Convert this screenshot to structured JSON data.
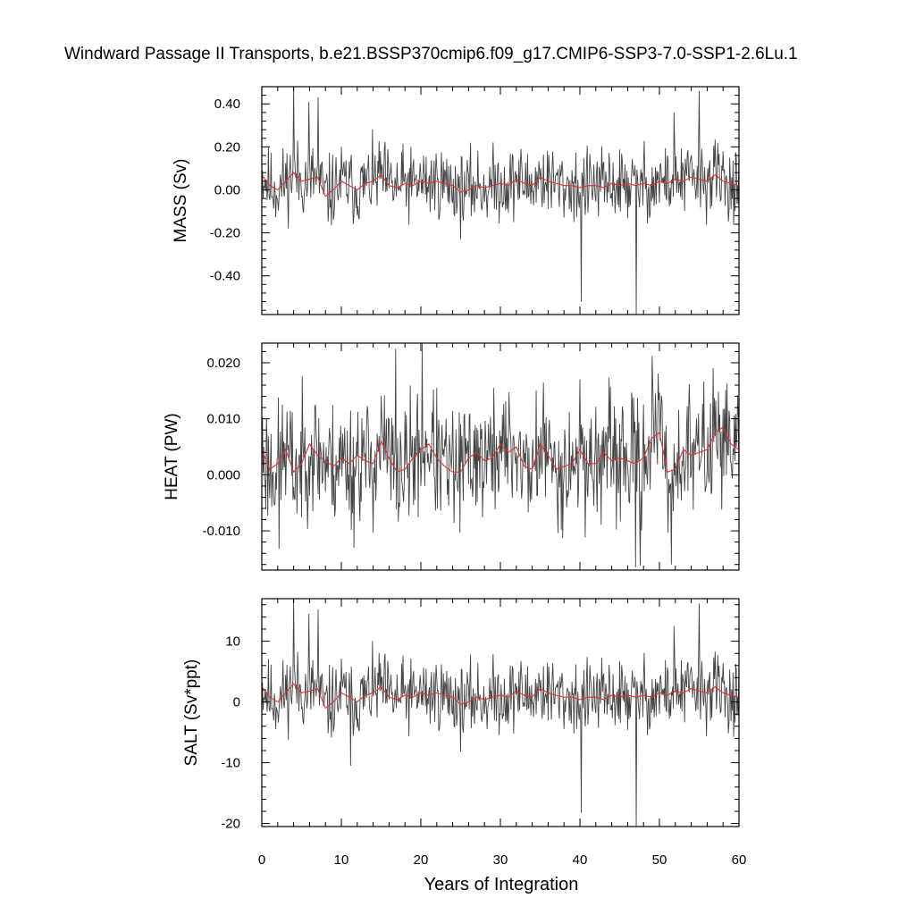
{
  "title": "Windward Passage II Transports, b.e21.BSSP370cmip6.f09_g17.CMIP6-SSP3-7.0-SSP1-2.6Lu.1",
  "xlabel": "Years of Integration",
  "x_ticks": [
    "0",
    "10",
    "20",
    "30",
    "40",
    "50",
    "60"
  ],
  "colors": {
    "raw_series": "#444444",
    "smoothed_series": "#e03030",
    "frame": "#000000"
  },
  "chart_data": [
    {
      "type": "line",
      "ylabel": "MASS (Sv)",
      "xlim": [
        0,
        60
      ],
      "ylim": [
        -0.58,
        0.48
      ],
      "y_ticks": [
        "0.40",
        "0.20",
        "0.00",
        "-0.20",
        "-0.40"
      ],
      "y_tick_values": [
        0.4,
        0.2,
        0.0,
        -0.2,
        -0.4
      ],
      "series": [
        {
          "style": "raw",
          "seed": 11,
          "scale": 0.085,
          "spikes": [
            [
              4.0,
              0.48
            ],
            [
              5.9,
              0.41
            ],
            [
              7.1,
              0.43
            ],
            [
              40.2,
              -0.52
            ],
            [
              47.1,
              -0.58
            ],
            [
              55.0,
              0.46
            ],
            [
              51.8,
              0.36
            ]
          ]
        },
        {
          "style": "smoothed",
          "x": [
            0,
            1,
            2,
            3,
            4,
            5,
            6,
            7,
            8,
            9,
            10,
            11,
            12,
            13,
            14,
            15,
            16,
            17,
            18,
            19,
            20,
            21,
            22,
            23,
            24,
            25,
            26,
            27,
            28,
            29,
            30,
            31,
            32,
            33,
            34,
            35,
            36,
            37,
            38,
            39,
            40,
            41,
            42,
            43,
            44,
            45,
            46,
            47,
            48,
            49,
            50,
            51,
            52,
            53,
            54,
            55,
            56,
            57,
            58,
            59,
            60
          ],
          "y": [
            0.07,
            0.02,
            0.0,
            0.04,
            0.08,
            0.04,
            0.05,
            0.06,
            -0.03,
            0.0,
            0.04,
            0.02,
            0.0,
            0.03,
            0.04,
            0.07,
            0.02,
            0.01,
            0.03,
            0.02,
            0.04,
            0.03,
            0.04,
            0.03,
            0.02,
            -0.01,
            0.0,
            0.02,
            0.01,
            0.02,
            0.03,
            0.02,
            0.05,
            0.03,
            0.02,
            0.06,
            0.04,
            0.03,
            0.02,
            0.02,
            0.01,
            0.02,
            0.02,
            0.01,
            0.03,
            0.02,
            0.03,
            0.02,
            0.03,
            0.02,
            0.04,
            0.03,
            0.05,
            0.04,
            0.06,
            0.05,
            0.04,
            0.07,
            0.04,
            0.03,
            0.02
          ]
        }
      ]
    },
    {
      "type": "line",
      "ylabel": "HEAT (PW)",
      "xlim": [
        0,
        60
      ],
      "ylim": [
        -0.017,
        0.0235
      ],
      "y_ticks": [
        "0.020",
        "0.010",
        "0.000",
        "-0.010"
      ],
      "y_tick_values": [
        0.02,
        0.01,
        0.0,
        -0.01
      ],
      "series": [
        {
          "style": "raw",
          "seed": 23,
          "scale": 0.0055,
          "spikes": [
            [
              16.8,
              0.0225
            ],
            [
              20.2,
              0.0235
            ],
            [
              47.0,
              -0.0165
            ],
            [
              47.6,
              -0.0162
            ],
            [
              51.5,
              -0.016
            ],
            [
              49.1,
              0.0212
            ],
            [
              2.2,
              -0.0132
            ],
            [
              11.6,
              -0.013
            ]
          ]
        },
        {
          "style": "smoothed",
          "x": [
            0,
            1,
            2,
            3,
            4,
            5,
            6,
            7,
            8,
            9,
            10,
            11,
            12,
            13,
            14,
            15,
            16,
            17,
            18,
            19,
            20,
            21,
            22,
            23,
            24,
            25,
            26,
            27,
            28,
            29,
            30,
            31,
            32,
            33,
            34,
            35,
            36,
            37,
            38,
            39,
            40,
            41,
            42,
            43,
            44,
            45,
            46,
            47,
            48,
            49,
            50,
            51,
            52,
            53,
            54,
            55,
            56,
            57,
            58,
            59,
            60
          ],
          "y": [
            0.0045,
            0.001,
            0.002,
            0.0045,
            0.0005,
            0.002,
            0.0055,
            0.0035,
            0.0025,
            0.0015,
            0.003,
            0.002,
            0.0035,
            0.0025,
            0.002,
            0.006,
            0.003,
            0.0005,
            0.001,
            0.003,
            0.0045,
            0.0055,
            0.003,
            0.0015,
            0.0005,
            0.0005,
            0.003,
            0.004,
            0.0025,
            0.003,
            0.0055,
            0.004,
            0.005,
            0.0015,
            0.001,
            0.0055,
            0.0035,
            0.001,
            0.0015,
            0.002,
            0.0045,
            0.002,
            0.002,
            0.004,
            0.0025,
            0.003,
            0.0025,
            0.002,
            0.003,
            0.0065,
            0.0075,
            0.0005,
            0.001,
            0.0045,
            0.0035,
            0.004,
            0.0045,
            0.0075,
            0.0085,
            0.0055,
            0.0045
          ]
        }
      ]
    },
    {
      "type": "line",
      "ylabel": "SALT (Sv*ppt)",
      "xlim": [
        0,
        60
      ],
      "ylim": [
        -20.5,
        17.0
      ],
      "y_ticks": [
        "10",
        "0",
        "-10",
        "-20"
      ],
      "y_tick_values": [
        10,
        0,
        -10,
        -20
      ],
      "series": [
        {
          "style": "raw",
          "seed": 11,
          "scale": 3.0,
          "spikes": [
            [
              4.0,
              17.0
            ],
            [
              5.9,
              14.5
            ],
            [
              7.1,
              15.2
            ],
            [
              40.2,
              -18.2
            ],
            [
              47.1,
              -20.5
            ],
            [
              55.0,
              16.2
            ],
            [
              51.8,
              12.5
            ],
            [
              11.2,
              -10.5
            ]
          ]
        },
        {
          "style": "smoothed",
          "x": [
            0,
            1,
            2,
            3,
            4,
            5,
            6,
            7,
            8,
            9,
            10,
            11,
            12,
            13,
            14,
            15,
            16,
            17,
            18,
            19,
            20,
            21,
            22,
            23,
            24,
            25,
            26,
            27,
            28,
            29,
            30,
            31,
            32,
            33,
            34,
            35,
            36,
            37,
            38,
            39,
            40,
            41,
            42,
            43,
            44,
            45,
            46,
            47,
            48,
            49,
            50,
            51,
            52,
            53,
            54,
            55,
            56,
            57,
            58,
            59,
            60
          ],
          "y": [
            2.5,
            0.8,
            0.0,
            1.5,
            3.0,
            1.5,
            1.8,
            2.2,
            -1.0,
            0.0,
            1.5,
            0.8,
            0.0,
            1.1,
            1.5,
            2.5,
            0.8,
            0.4,
            1.1,
            0.8,
            1.5,
            1.1,
            1.5,
            1.1,
            0.8,
            -0.4,
            0.0,
            0.8,
            0.4,
            0.8,
            1.1,
            0.8,
            1.8,
            1.1,
            0.8,
            2.2,
            1.5,
            1.1,
            0.8,
            0.8,
            0.4,
            0.8,
            0.8,
            0.4,
            1.1,
            0.8,
            1.1,
            0.8,
            1.1,
            0.8,
            1.5,
            1.1,
            1.8,
            1.5,
            2.2,
            1.8,
            1.5,
            2.5,
            1.5,
            1.1,
            0.8
          ]
        }
      ]
    }
  ]
}
